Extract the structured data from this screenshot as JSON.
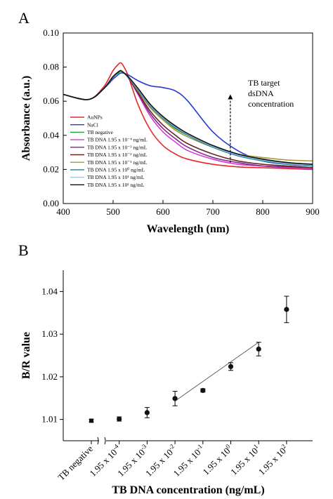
{
  "chart_data": [
    {
      "type": "line",
      "panel_label": "A",
      "xlabel": "Wavelength (nm)",
      "ylabel": "Absorbance (a.u.)",
      "xlim": [
        400,
        900
      ],
      "ylim": [
        0.0,
        0.1
      ],
      "xticks": [
        "400",
        "500",
        "600",
        "700",
        "800",
        "900"
      ],
      "yticks": [
        "0.00",
        "0.02",
        "0.04",
        "0.06",
        "0.08",
        "0.10"
      ],
      "legend_position": "bottom-left",
      "annotation": {
        "lines": [
          "TB target",
          "dsDNA",
          "concentration"
        ],
        "arrow_x": 735,
        "arrow_from": 0.024,
        "arrow_to": 0.064
      },
      "x": [
        400,
        450,
        480,
        500,
        510,
        515,
        520,
        530,
        550,
        575,
        600,
        625,
        650,
        700,
        750,
        800,
        850,
        900
      ],
      "series": [
        {
          "name": "AuNPs",
          "color": "#e8262a",
          "values": [
            0.064,
            0.061,
            0.068,
            0.078,
            0.0815,
            0.0825,
            0.081,
            0.075,
            0.058,
            0.043,
            0.034,
            0.029,
            0.026,
            0.023,
            0.0215,
            0.021,
            0.0205,
            0.02
          ]
        },
        {
          "name": "NaCl",
          "color": "#2838d8",
          "values": [
            0.064,
            0.061,
            0.067,
            0.073,
            0.0755,
            0.0765,
            0.0765,
            0.0755,
            0.072,
            0.069,
            0.068,
            0.066,
            0.06,
            0.042,
            0.031,
            0.025,
            0.023,
            0.022
          ]
        },
        {
          "name": "TB negative",
          "color": "#1f9d3a",
          "values": [
            0.064,
            0.061,
            0.067,
            0.074,
            0.0765,
            0.0775,
            0.077,
            0.0745,
            0.067,
            0.057,
            0.05,
            0.044,
            0.04,
            0.034,
            0.029,
            0.026,
            0.024,
            0.023
          ]
        },
        {
          "name": "TB DNA  1.95 x 10⁻⁴ ng/mL",
          "color": "#d63ad6",
          "values": [
            0.064,
            0.061,
            0.067,
            0.0745,
            0.077,
            0.078,
            0.077,
            0.074,
            0.064,
            0.051,
            0.042,
            0.036,
            0.031,
            0.026,
            0.023,
            0.022,
            0.021,
            0.0205
          ]
        },
        {
          "name": "TB DNA  1.95 x 10⁻³ ng/mL",
          "color": "#7a2a8c",
          "values": [
            0.064,
            0.061,
            0.067,
            0.0745,
            0.077,
            0.078,
            0.077,
            0.074,
            0.0645,
            0.0525,
            0.044,
            0.038,
            0.033,
            0.027,
            0.024,
            0.022,
            0.0215,
            0.021
          ]
        },
        {
          "name": "TB DNA  1.95 x 10⁻² ng/mL",
          "color": "#6b2424",
          "values": [
            0.064,
            0.061,
            0.067,
            0.0745,
            0.077,
            0.078,
            0.077,
            0.074,
            0.065,
            0.054,
            0.046,
            0.04,
            0.035,
            0.029,
            0.025,
            0.023,
            0.022,
            0.021
          ]
        },
        {
          "name": "TB DNA  1.95 x 10⁻¹ ng/mL",
          "color": "#a39a3a",
          "values": [
            0.064,
            0.061,
            0.067,
            0.0745,
            0.077,
            0.078,
            0.077,
            0.0745,
            0.066,
            0.056,
            0.049,
            0.043,
            0.039,
            0.033,
            0.029,
            0.027,
            0.0255,
            0.025
          ]
        },
        {
          "name": "TB DNA  1.95 x 10⁰ ng/mL",
          "color": "#16849a",
          "values": [
            0.064,
            0.061,
            0.067,
            0.0745,
            0.077,
            0.078,
            0.077,
            0.0745,
            0.0665,
            0.057,
            0.05,
            0.0445,
            0.04,
            0.033,
            0.028,
            0.025,
            0.023,
            0.022
          ]
        },
        {
          "name": "TB DNA  1.95 x 10¹ ng/mL",
          "color": "#a8bde6",
          "values": [
            0.064,
            0.061,
            0.067,
            0.0745,
            0.077,
            0.078,
            0.077,
            0.0745,
            0.067,
            0.0575,
            0.0505,
            0.045,
            0.0405,
            0.0335,
            0.0285,
            0.0255,
            0.0235,
            0.0225
          ]
        },
        {
          "name": "TB DNA  1.95 x 10² ng/mL",
          "color": "#111111",
          "values": [
            0.064,
            0.061,
            0.067,
            0.0745,
            0.077,
            0.078,
            0.077,
            0.0745,
            0.0675,
            0.058,
            0.051,
            0.0455,
            0.041,
            0.034,
            0.029,
            0.026,
            0.024,
            0.023
          ]
        }
      ]
    },
    {
      "type": "scatter",
      "panel_label": "B",
      "xlabel": "TB DNA concentration (ng/mL)",
      "ylabel": "B/R value",
      "ylim": [
        1.005,
        1.045
      ],
      "yticks": [
        "1.01",
        "1.02",
        "1.03",
        "1.04"
      ],
      "categories": [
        {
          "base": "TB negative",
          "exp": ""
        },
        {
          "base": "1.95 x 10",
          "exp": "-4"
        },
        {
          "base": "1.95 x 10",
          "exp": "-3"
        },
        {
          "base": "1.95 x 10",
          "exp": "-2"
        },
        {
          "base": "1.95 x 10",
          "exp": "-1"
        },
        {
          "base": "1.95 x 10",
          "exp": "0"
        },
        {
          "base": "1.95 x 10",
          "exp": "1"
        },
        {
          "base": "1.95 x 10",
          "exp": "2"
        }
      ],
      "values": [
        1.0097,
        1.0101,
        1.0116,
        1.0149,
        1.0168,
        1.0224,
        1.0265,
        1.0358
      ],
      "errors": [
        0.0003,
        0.0005,
        0.0012,
        0.0017,
        0.0004,
        0.0009,
        0.0016,
        0.0031
      ],
      "fit_line": {
        "from_index": 3,
        "to_index": 6,
        "y_start": 1.0143,
        "y_end": 1.0281
      },
      "axis_break": true,
      "marker_color": "#111111"
    }
  ]
}
